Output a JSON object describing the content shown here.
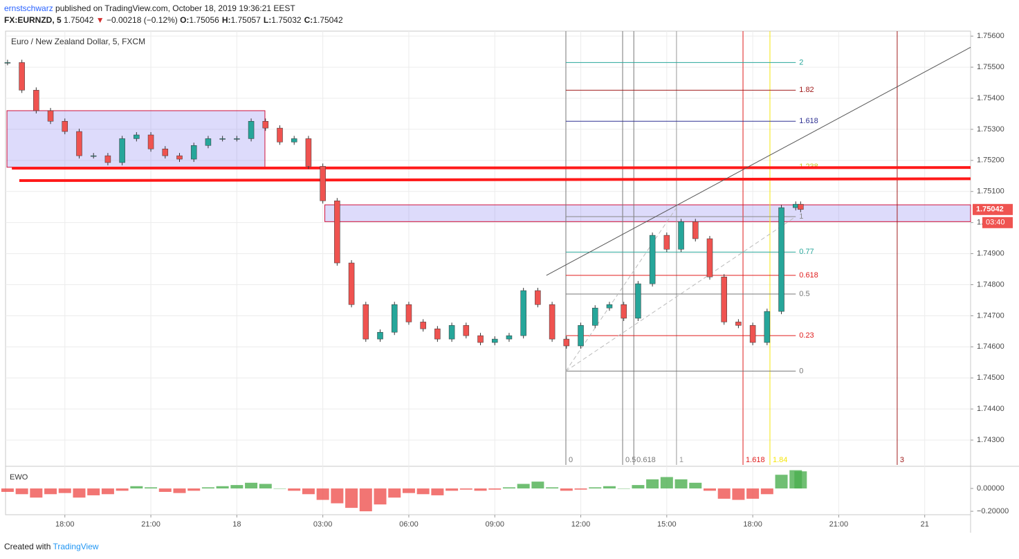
{
  "header": {
    "author": "ernstschwarz",
    "published": "published on TradingView.com, October 18, 2019 19:36:21 EEST",
    "symbol": "FX:EURNZD, 5",
    "last": "1.75042",
    "arrow": "▼",
    "change": "−0.00218 (−0.12%)",
    "ohlc": [
      {
        "key": "O:",
        "value": "1.75056"
      },
      {
        "key": "H:",
        "value": "1.75057"
      },
      {
        "key": "L:",
        "value": "1.75032"
      },
      {
        "key": "C:",
        "value": "1.75042"
      }
    ]
  },
  "footer": {
    "text": "Created with",
    "brand": "TradingView"
  },
  "chart_data": [
    {
      "type": "candlestick",
      "title": "Euro / New Zealand Dollar, 5, FXCM",
      "up_color": "#26a69a",
      "down_color": "#ef5350",
      "grid": true,
      "x": [
        16,
        16.5,
        17,
        17.5,
        18,
        18.5,
        19,
        19.5,
        20,
        20.5,
        21,
        21.5,
        22,
        22.5,
        23,
        23.5,
        24,
        24.5,
        25,
        25.5,
        26,
        26.5,
        27,
        27.5,
        28,
        28.5,
        29,
        29.5,
        30,
        30.5,
        31,
        31.5,
        32,
        32.5,
        33,
        33.5,
        34,
        34.5,
        35,
        35.5,
        36,
        36.5,
        37,
        37.5,
        38,
        38.5,
        39,
        39.5,
        40,
        40.5,
        41,
        41.5,
        42,
        42.5,
        43,
        43.5,
        43.67
      ],
      "values": [
        1.75515,
        1.75426,
        1.7536,
        1.75326,
        1.75293,
        1.75215,
        1.75215,
        1.75193,
        1.7527,
        1.75282,
        1.75237,
        1.75215,
        1.75204,
        1.75248,
        1.7527,
        1.7527,
        1.7527,
        1.75326,
        1.75304,
        1.75259,
        1.7527,
        1.75181,
        1.7507,
        1.7487,
        1.74736,
        1.74625,
        1.74647,
        1.74736,
        1.7468,
        1.74658,
        1.74625,
        1.74669,
        1.74636,
        1.74614,
        1.74625,
        1.74636,
        1.74781,
        1.74736,
        1.74625,
        1.74603,
        1.74669,
        1.74725,
        1.74736,
        1.74692,
        1.74803,
        1.74959,
        1.74914,
        1.75003,
        1.74948,
        1.74825,
        1.7468,
        1.74669,
        1.74614,
        1.74714,
        1.75048,
        1.75059,
        1.75042
      ],
      "xlim": [
        15.93,
        49.6
      ],
      "ylim": [
        1.7422,
        1.75616
      ],
      "xticks": [
        {
          "value": 18,
          "label": "18:00"
        },
        {
          "value": 21,
          "label": "21:00"
        },
        {
          "value": 24,
          "label": "18"
        },
        {
          "value": 27,
          "label": "03:00"
        },
        {
          "value": 30,
          "label": "06:00"
        },
        {
          "value": 33,
          "label": "09:00"
        },
        {
          "value": 36,
          "label": "12:00"
        },
        {
          "value": 39,
          "label": "15:00"
        },
        {
          "value": 42,
          "label": "18:00"
        },
        {
          "value": 45,
          "label": "21:00"
        },
        {
          "value": 48,
          "label": "21"
        }
      ],
      "yticks": [
        {
          "value": 1.743,
          "label": "1.74300"
        },
        {
          "value": 1.744,
          "label": "1.74400"
        },
        {
          "value": 1.745,
          "label": "1.74500"
        },
        {
          "value": 1.746,
          "label": "1.74600"
        },
        {
          "value": 1.747,
          "label": "1.74700"
        },
        {
          "value": 1.748,
          "label": "1.74800"
        },
        {
          "value": 1.749,
          "label": "1.74900"
        },
        {
          "value": 1.75,
          "label": "1.75000"
        },
        {
          "value": 1.751,
          "label": "1.75100"
        },
        {
          "value": 1.752,
          "label": "1.75200"
        },
        {
          "value": 1.753,
          "label": "1.75300"
        },
        {
          "value": 1.754,
          "label": "1.75400"
        },
        {
          "value": 1.755,
          "label": "1.75500"
        },
        {
          "value": 1.756,
          "label": "1.75600"
        }
      ],
      "last_price": {
        "value": 1.75042,
        "label": "1.75042",
        "countdown": "03:40"
      },
      "zones": [
        {
          "xlim": [
            15.98,
            24.98
          ],
          "ylim": [
            1.75178,
            1.7536
          ]
        },
        {
          "xlim": [
            27.07,
            49.6
          ],
          "ylim": [
            1.75003,
            1.75057
          ]
        }
      ],
      "lines": [
        {
          "x": [
            16.15,
            49.6
          ],
          "y": [
            1.75175,
            1.75177
          ],
          "color": "#ff1a1a",
          "width": 4,
          "dash": ""
        },
        {
          "x": [
            16.41,
            49.6
          ],
          "y": [
            1.75135,
            1.75141
          ],
          "color": "#ff1a1a",
          "width": 4,
          "dash": ""
        },
        {
          "x": [
            34.8,
            49.6
          ],
          "y": [
            1.7483,
            1.75564
          ],
          "color": "#555555",
          "width": 1,
          "dash": ""
        },
        {
          "x": [
            35.48,
            39.34
          ],
          "y": [
            1.74522,
            1.75048
          ],
          "color": "#bbbbbb",
          "width": 1,
          "dash": "6 4"
        },
        {
          "x": [
            35.48,
            43.5
          ],
          "y": [
            1.74522,
            1.75019
          ],
          "color": "#bbbbbb",
          "width": 1,
          "dash": "6 4"
        }
      ],
      "fib_xlim": [
        35.48,
        43.5
      ],
      "fib_levels": [
        {
          "label": "2",
          "value": 1.75515,
          "color": "#26a69a"
        },
        {
          "label": "1.82",
          "value": 1.75426,
          "color": "#a01b1b"
        },
        {
          "label": "1.618",
          "value": 1.75326,
          "color": "#2e3192"
        },
        {
          "label": "1.238",
          "value": 1.75179,
          "color": "#c8c820"
        },
        {
          "label": "1",
          "value": 1.75019,
          "color": "#888888"
        },
        {
          "label": "0.77",
          "value": 1.74905,
          "color": "#26a69a"
        },
        {
          "label": "0.618",
          "value": 1.7483,
          "color": "#e01b1b"
        },
        {
          "label": "0.5",
          "value": 1.7477,
          "color": "#777777"
        },
        {
          "label": "0.23",
          "value": 1.74636,
          "color": "#e01b1b"
        },
        {
          "label": "0",
          "value": 1.74522,
          "color": "#777777"
        }
      ],
      "time_fib": [
        {
          "label": "0",
          "value": 35.48,
          "color": "#777777"
        },
        {
          "label": "0.5",
          "value": 37.46,
          "color": "#777777"
        },
        {
          "label": "0.618",
          "value": 37.85,
          "color": "#777777"
        },
        {
          "label": "1",
          "value": 39.34,
          "color": "#999999"
        },
        {
          "label": "1.618",
          "value": 41.66,
          "color": "#e01b1b"
        },
        {
          "label": "1.84",
          "value": 42.6,
          "color": "#f5e60a"
        },
        {
          "label": "3",
          "value": 47.04,
          "color": "#a01b1b"
        }
      ]
    },
    {
      "type": "bar",
      "title": "EWO",
      "pos_color": "#4caf50",
      "neg_color": "#ef5350",
      "ylim": [
        -0.23,
        0.182
      ],
      "yticks": [
        {
          "value": 0,
          "label": "0.00000"
        },
        {
          "value": -0.2,
          "label": "−0.20000"
        }
      ],
      "values": [
        -0.03,
        -0.05,
        -0.08,
        -0.05,
        -0.04,
        -0.08,
        -0.06,
        -0.05,
        -0.02,
        0.02,
        0.01,
        -0.03,
        -0.04,
        -0.02,
        0.01,
        0.02,
        0.03,
        0.05,
        0.04,
        0,
        -0.02,
        -0.05,
        -0.1,
        -0.13,
        -0.17,
        -0.2,
        -0.14,
        -0.08,
        -0.04,
        -0.05,
        -0.06,
        -0.02,
        -0.01,
        -0.02,
        -0.01,
        0.01,
        0.04,
        0.06,
        0.01,
        -0.02,
        -0.01,
        0.01,
        0.02,
        0,
        0.03,
        0.08,
        0.1,
        0.08,
        0.05,
        -0.02,
        -0.09,
        -0.1,
        -0.09,
        -0.05,
        0.12,
        0.16,
        0.15
      ]
    }
  ]
}
